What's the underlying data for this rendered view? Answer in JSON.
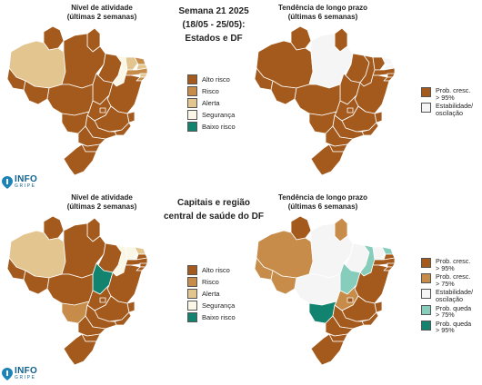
{
  "top": {
    "left_title": [
      "Nível de atividade",
      "(últimas 2 semanas)"
    ],
    "center_title": [
      "Semana 21 2025",
      "(18/05 - 25/05):",
      "Estados e DF"
    ],
    "right_title": [
      "Tendência de longo prazo",
      "(últimas 6 semanas)"
    ],
    "activity_legend": [
      {
        "label": "Alto risco",
        "color": "#a45a1d"
      },
      {
        "label": "Risco",
        "color": "#c78c4a"
      },
      {
        "label": "Alerta",
        "color": "#e3c590"
      },
      {
        "label": "Segurança",
        "color": "#fbf7e6"
      },
      {
        "label": "Baixo risco",
        "color": "#11836e"
      }
    ],
    "trend_legend": [
      {
        "label": [
          "Prob. cresc.",
          "> 95%"
        ],
        "color": "#a45a1d"
      },
      {
        "label": [
          "Estabilidade/",
          "oscilação"
        ],
        "color": "#f5f5f5"
      }
    ],
    "logo": {
      "main": "INFO",
      "sub": "GRIPE"
    }
  },
  "bottom": {
    "left_title": [
      "Nível de atividade",
      "(últimas 2 semanas)"
    ],
    "center_title": [
      "Capitais e região",
      "central de saúde do DF"
    ],
    "right_title": [
      "Tendência de longo prazo",
      "(últimas 6 semanas)"
    ],
    "activity_legend": [
      {
        "label": "Alto risco",
        "color": "#a45a1d"
      },
      {
        "label": "Risco",
        "color": "#c78c4a"
      },
      {
        "label": "Alerta",
        "color": "#e3c590"
      },
      {
        "label": "Segurança",
        "color": "#fbf7e6"
      },
      {
        "label": "Baixo risco",
        "color": "#11836e"
      }
    ],
    "trend_legend": [
      {
        "label": [
          "Prob. cresc.",
          "> 95%"
        ],
        "color": "#a45a1d"
      },
      {
        "label": [
          "Prob. cresc.",
          "> 75%"
        ],
        "color": "#c78c4a"
      },
      {
        "label": [
          "Estabilidade/",
          "oscilação"
        ],
        "color": "#f5f5f5"
      },
      {
        "label": [
          "Prob. queda",
          "> 75%"
        ],
        "color": "#86cdbc"
      },
      {
        "label": [
          "Prob. queda",
          "> 95%"
        ],
        "color": "#11836e"
      }
    ],
    "logo": {
      "main": "INFO",
      "sub": "GRIPE"
    }
  },
  "maps": {
    "top_activity": {
      "AM": "#e3c590",
      "RR": "#a45a1d",
      "AP": "#a45a1d",
      "PA": "#a45a1d",
      "AC": "#a45a1d",
      "RO": "#a45a1d",
      "TO": "#a45a1d",
      "MA": "#a45a1d",
      "PI": "#fbf7e6",
      "CE": "#e3c590",
      "RN": "#c78c4a",
      "PB": "#e3c590",
      "PE": "#c78c4a",
      "AL": "#e3c590",
      "SE": "#c78c4a",
      "BA": "#a45a1d",
      "MT": "#a45a1d",
      "GO": "#a45a1d",
      "DF": "#a45a1d",
      "MS": "#a45a1d",
      "MG": "#a45a1d",
      "ES": "#a45a1d",
      "RJ": "#a45a1d",
      "SP": "#a45a1d",
      "PR": "#a45a1d",
      "SC": "#a45a1d",
      "RS": "#a45a1d"
    },
    "top_trend": {
      "AM": "#a45a1d",
      "RR": "#a45a1d",
      "AP": "#a45a1d",
      "PA": "#f5f5f5",
      "AC": "#a45a1d",
      "RO": "#a45a1d",
      "TO": "#a45a1d",
      "MA": "#a45a1d",
      "PI": "#a45a1d",
      "CE": "#a45a1d",
      "RN": "#f5f5f5",
      "PB": "#f5f5f5",
      "PE": "#a45a1d",
      "AL": "#a45a1d",
      "SE": "#a45a1d",
      "BA": "#a45a1d",
      "MT": "#a45a1d",
      "GO": "#a45a1d",
      "DF": "#a45a1d",
      "MS": "#a45a1d",
      "MG": "#a45a1d",
      "ES": "#a45a1d",
      "RJ": "#a45a1d",
      "SP": "#a45a1d",
      "PR": "#a45a1d",
      "SC": "#a45a1d",
      "RS": "#a45a1d"
    },
    "bottom_activity": {
      "AM": "#e3c590",
      "RR": "#a45a1d",
      "AP": "#a45a1d",
      "PA": "#a45a1d",
      "AC": "#a45a1d",
      "RO": "#a45a1d",
      "TO": "#11836e",
      "MA": "#a45a1d",
      "PI": "#fbf7e6",
      "CE": "#fbf7e6",
      "RN": "#e3c590",
      "PB": "#a45a1d",
      "PE": "#a45a1d",
      "AL": "#a45a1d",
      "SE": "#a45a1d",
      "BA": "#a45a1d",
      "MT": "#a45a1d",
      "GO": "#a45a1d",
      "DF": "#a45a1d",
      "MS": "#c78c4a",
      "MG": "#a45a1d",
      "ES": "#a45a1d",
      "RJ": "#a45a1d",
      "SP": "#a45a1d",
      "PR": "#a45a1d",
      "SC": "#a45a1d",
      "RS": "#a45a1d"
    },
    "bottom_trend": {
      "AM": "#c78c4a",
      "RR": "#a45a1d",
      "AP": "#c78c4a",
      "PA": "#f5f5f5",
      "AC": "#c78c4a",
      "RO": "#c78c4a",
      "TO": "#86cdbc",
      "MA": "#f5f5f5",
      "PI": "#86cdbc",
      "CE": "#f5f5f5",
      "RN": "#86cdbc",
      "PB": "#a45a1d",
      "PE": "#a45a1d",
      "AL": "#a45a1d",
      "SE": "#a45a1d",
      "BA": "#a45a1d",
      "MT": "#f5f5f5",
      "GO": "#c78c4a",
      "DF": "#a45a1d",
      "MS": "#11836e",
      "MG": "#a45a1d",
      "ES": "#a45a1d",
      "RJ": "#a45a1d",
      "SP": "#a45a1d",
      "PR": "#a45a1d",
      "SC": "#a45a1d",
      "RS": "#a45a1d"
    }
  }
}
